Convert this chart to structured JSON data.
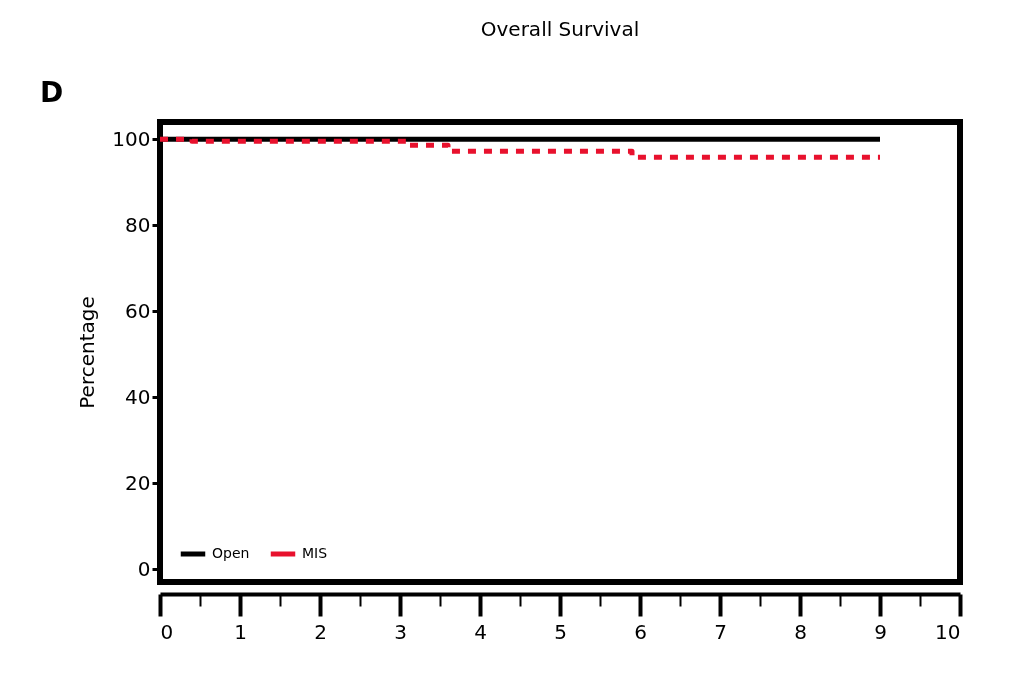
{
  "chart_data": {
    "type": "step",
    "title": "Overall Survival",
    "ylabel": "Percentage",
    "annotations": [
      "D"
    ],
    "xlim": [
      0,
      10
    ],
    "xticks": [
      0,
      1,
      2,
      3,
      4,
      5,
      6,
      7,
      8,
      9,
      10
    ],
    "ylim": [
      -3,
      104
    ],
    "yticks": [
      0,
      20,
      40,
      60,
      80,
      100
    ],
    "grid": false,
    "legend": "bottom left",
    "series": [
      {
        "name": "Open",
        "color": "#000000",
        "line_style": "solid",
        "x": [
          0,
          9
        ],
        "values": [
          100,
          100
        ]
      },
      {
        "name": "MIS",
        "color": "#e8112d",
        "line_style": "dashed",
        "x": [
          0,
          0.4,
          3.1,
          3.6,
          5.9,
          9
        ],
        "values": [
          100,
          99.5,
          98.6,
          97.2,
          95.8,
          95.8
        ]
      }
    ]
  }
}
